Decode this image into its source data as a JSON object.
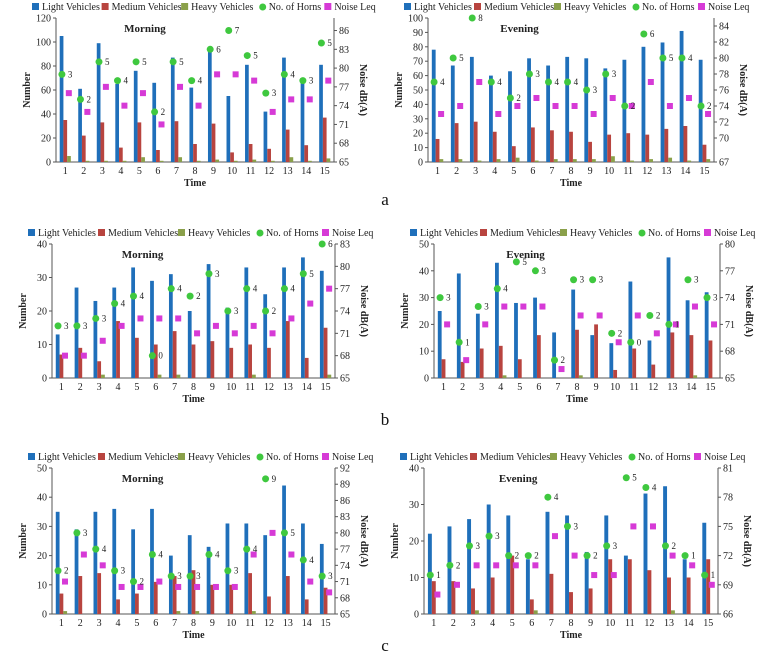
{
  "legend": {
    "light": "Light Vehicles",
    "medium": "Medium Vehicles",
    "heavy": "Heavy Vehicles",
    "horns": "No. of Horns",
    "leq": "Noise Leq"
  },
  "colors": {
    "light": "#1f6fba",
    "medium": "#b8443f",
    "heavy": "#8aa04a",
    "horns": "#3fc83f",
    "leq": "#d63ad6"
  },
  "axis_titles": {
    "x": "Time",
    "y_left": "Number",
    "y_right": "Noise dB(A)"
  },
  "panel_labels": [
    "a",
    "b",
    "c"
  ],
  "chart_data": [
    {
      "id": "a-morning",
      "type": "bar",
      "title": "Morning",
      "categories": [
        "1",
        "2",
        "3",
        "4",
        "5",
        "6",
        "7",
        "8",
        "9",
        "10",
        "11",
        "12",
        "13",
        "14",
        "15"
      ],
      "ylim": [
        0,
        120
      ],
      "yticks": [
        0,
        20,
        40,
        60,
        80,
        100,
        120
      ],
      "y2lim": [
        65,
        88
      ],
      "y2ticks": [
        65,
        68,
        71,
        74,
        77,
        80,
        83,
        86
      ],
      "series": [
        {
          "name": "Light Vehicles",
          "values": [
            105,
            61,
            99,
            65,
            76,
            66,
            87,
            62,
            96,
            55,
            81,
            42,
            87,
            69,
            81
          ]
        },
        {
          "name": "Medium Vehicles",
          "values": [
            35,
            22,
            33,
            12,
            33,
            10,
            34,
            15,
            32,
            8,
            15,
            11,
            27,
            14,
            37
          ]
        },
        {
          "name": "Heavy Vehicles",
          "values": [
            5,
            1,
            1,
            1,
            4,
            1,
            4,
            1,
            2,
            1,
            2,
            1,
            4,
            1,
            3
          ]
        },
        {
          "name": "No. of Horns",
          "values": [
            3,
            2,
            5,
            4,
            5,
            2,
            5,
            4,
            6,
            7,
            5,
            3,
            4,
            3,
            5
          ]
        },
        {
          "name": "Noise Leq",
          "values": [
            76,
            73,
            77,
            74,
            76,
            71,
            77,
            74,
            79,
            79,
            78,
            73,
            75,
            75,
            78
          ]
        }
      ],
      "horn_positions": [
        79,
        75,
        81,
        78,
        81,
        73,
        81,
        78,
        83,
        86,
        82,
        76,
        79,
        78,
        84
      ],
      "xlabel": "Time",
      "ylabel": "Number",
      "y2label": "Noise dB(A)"
    },
    {
      "id": "a-evening",
      "type": "bar",
      "title": "Evening",
      "categories": [
        "1",
        "2",
        "3",
        "4",
        "5",
        "6",
        "7",
        "8",
        "9",
        "10",
        "11",
        "12",
        "13",
        "14",
        "15"
      ],
      "ylim": [
        0,
        100
      ],
      "yticks": [
        0,
        10,
        20,
        30,
        40,
        50,
        60,
        70,
        80,
        90,
        100
      ],
      "y2lim": [
        67,
        85
      ],
      "y2ticks": [
        67,
        70,
        72,
        74,
        76,
        78,
        80,
        82,
        84
      ],
      "series": [
        {
          "name": "Light Vehicles",
          "values": [
            78,
            67,
            73,
            60,
            63,
            72,
            67,
            73,
            72,
            65,
            71,
            80,
            83,
            91,
            71
          ]
        },
        {
          "name": "Medium Vehicles",
          "values": [
            16,
            27,
            28,
            21,
            11,
            24,
            22,
            21,
            14,
            19,
            20,
            19,
            23,
            25,
            12
          ]
        },
        {
          "name": "Heavy Vehicles",
          "values": [
            2,
            2,
            1,
            2,
            3,
            1,
            2,
            2,
            2,
            4,
            1,
            2,
            3,
            1,
            2
          ]
        },
        {
          "name": "No. of Horns",
          "values": [
            4,
            5,
            8,
            4,
            2,
            3,
            4,
            4,
            3,
            3,
            2,
            6,
            5,
            4,
            2
          ]
        },
        {
          "name": "Noise Leq",
          "values": [
            73,
            74,
            77,
            73,
            74,
            75,
            74,
            74,
            73,
            75,
            74,
            77,
            74,
            75,
            73
          ]
        }
      ],
      "horn_positions": [
        77,
        80,
        85,
        77,
        75,
        78,
        77,
        77,
        76,
        78,
        74,
        83,
        80,
        80,
        74
      ],
      "xlabel": "Time",
      "ylabel": "Number",
      "y2label": "Noise dB(A)"
    },
    {
      "id": "b-morning",
      "type": "bar",
      "title": "Morning",
      "categories": [
        "1",
        "2",
        "3",
        "4",
        "5",
        "6",
        "7",
        "8",
        "9",
        "10",
        "11",
        "12",
        "13",
        "14",
        "15"
      ],
      "ylim": [
        0,
        40
      ],
      "yticks": [
        0,
        10,
        20,
        30,
        40
      ],
      "y2lim": [
        65,
        83
      ],
      "y2ticks": [
        65,
        68,
        71,
        74,
        77,
        80,
        83
      ],
      "series": [
        {
          "name": "Light Vehicles",
          "values": [
            13,
            27,
            23,
            27,
            33,
            29,
            31,
            20,
            34,
            21,
            33,
            25,
            33,
            36,
            32
          ]
        },
        {
          "name": "Medium Vehicles",
          "values": [
            7,
            9,
            5,
            17,
            12,
            10,
            14,
            10,
            11,
            9,
            10,
            9,
            17,
            6,
            15
          ]
        },
        {
          "name": "Heavy Vehicles",
          "values": [
            0,
            0,
            1,
            0,
            0,
            1,
            1,
            0,
            0,
            0,
            1,
            0,
            0,
            0,
            1
          ]
        },
        {
          "name": "No. of Horns",
          "values": [
            3,
            3,
            3,
            4,
            4,
            0,
            4,
            2,
            3,
            3,
            4,
            2,
            4,
            5,
            6
          ]
        },
        {
          "name": "Noise Leq",
          "values": [
            68,
            68,
            70,
            72,
            73,
            73,
            73,
            71,
            72,
            71,
            72,
            71,
            73,
            75,
            77
          ]
        }
      ],
      "horn_positions": [
        72,
        72,
        73,
        75,
        76,
        68,
        77,
        76,
        79,
        74,
        77,
        74,
        77,
        79,
        83
      ],
      "xlabel": "Time",
      "ylabel": "Number",
      "y2label": "Noise dB(A)"
    },
    {
      "id": "b-evening",
      "type": "bar",
      "title": "Evening",
      "categories": [
        "1",
        "2",
        "3",
        "4",
        "5",
        "6",
        "7",
        "8",
        "9",
        "10",
        "11",
        "12",
        "13",
        "14",
        "15"
      ],
      "ylim": [
        0,
        50
      ],
      "yticks": [
        0,
        10,
        20,
        30,
        40,
        50
      ],
      "y2lim": [
        65,
        80
      ],
      "y2ticks": [
        65,
        68,
        71,
        74,
        77,
        80
      ],
      "series": [
        {
          "name": "Light Vehicles",
          "values": [
            25,
            39,
            24,
            43,
            28,
            30,
            17,
            33,
            16,
            13,
            36,
            14,
            45,
            29,
            32
          ]
        },
        {
          "name": "Medium Vehicles",
          "values": [
            7,
            6,
            11,
            12,
            7,
            16,
            0,
            18,
            20,
            3,
            11,
            5,
            17,
            16,
            14
          ]
        },
        {
          "name": "Heavy Vehicles",
          "values": [
            0,
            0,
            0,
            1,
            0,
            0,
            0,
            1,
            0,
            0,
            0,
            0,
            0,
            1,
            0
          ]
        },
        {
          "name": "No. of Horns",
          "values": [
            3,
            1,
            3,
            4,
            5,
            3,
            2,
            3,
            3,
            2,
            0,
            2,
            1,
            3,
            3
          ]
        },
        {
          "name": "Noise Leq",
          "values": [
            71,
            67,
            71,
            73,
            73,
            73,
            66,
            72,
            72,
            69,
            72,
            70,
            71,
            73,
            71
          ]
        }
      ],
      "horn_positions": [
        74,
        69,
        73,
        75,
        78,
        77,
        67,
        76,
        76,
        70,
        69,
        72,
        71,
        76,
        74
      ],
      "xlabel": "Time",
      "ylabel": "Number",
      "y2label": "Noise dB(A)"
    },
    {
      "id": "c-morning",
      "type": "bar",
      "title": "Morning",
      "categories": [
        "1",
        "2",
        "3",
        "4",
        "5",
        "6",
        "7",
        "8",
        "9",
        "10",
        "11",
        "12",
        "13",
        "14",
        "15"
      ],
      "ylim": [
        0,
        50
      ],
      "yticks": [
        0,
        10,
        20,
        30,
        40,
        50
      ],
      "y2lim": [
        65,
        92
      ],
      "y2ticks": [
        65,
        68,
        71,
        74,
        77,
        80,
        83,
        86,
        89,
        92
      ],
      "series": [
        {
          "name": "Light Vehicles",
          "values": [
            35,
            29,
            35,
            36,
            29,
            36,
            20,
            27,
            23,
            31,
            31,
            27,
            44,
            31,
            24
          ]
        },
        {
          "name": "Medium Vehicles",
          "values": [
            7,
            13,
            14,
            5,
            7,
            11,
            13,
            15,
            10,
            10,
            14,
            6,
            13,
            5,
            9
          ]
        },
        {
          "name": "Heavy Vehicles",
          "values": [
            1,
            0,
            0,
            0,
            0,
            0,
            1,
            1,
            0,
            0,
            1,
            0,
            0,
            0,
            0
          ]
        },
        {
          "name": "No. of Horns",
          "values": [
            2,
            3,
            4,
            3,
            2,
            4,
            3,
            3,
            4,
            3,
            4,
            9,
            5,
            4,
            3
          ]
        },
        {
          "name": "Noise Leq",
          "values": [
            71,
            76,
            74,
            70,
            70,
            71,
            70,
            70,
            70,
            70,
            76,
            80,
            76,
            71,
            69
          ]
        }
      ],
      "horn_positions": [
        73,
        80,
        77,
        73,
        71,
        76,
        72,
        72,
        76,
        73,
        77,
        90,
        80,
        75,
        72
      ],
      "xlabel": "Time",
      "ylabel": "Number",
      "y2label": "Noise dB(A)"
    },
    {
      "id": "c-evening",
      "type": "bar",
      "title": "Evening",
      "categories": [
        "1",
        "2",
        "3",
        "4",
        "5",
        "6",
        "7",
        "8",
        "9",
        "10",
        "11",
        "12",
        "13",
        "14",
        "15"
      ],
      "ylim": [
        0,
        40
      ],
      "yticks": [
        0,
        10,
        20,
        30,
        40
      ],
      "y2lim": [
        66,
        81
      ],
      "y2ticks": [
        66,
        69,
        72,
        75,
        78,
        81
      ],
      "series": [
        {
          "name": "Light Vehicles",
          "values": [
            22,
            24,
            26,
            30,
            27,
            15,
            28,
            27,
            17,
            27,
            16,
            33,
            35,
            15,
            25
          ]
        },
        {
          "name": "Medium Vehicles",
          "values": [
            9,
            9,
            7,
            10,
            16,
            4,
            11,
            6,
            7,
            15,
            15,
            12,
            10,
            10,
            15
          ]
        },
        {
          "name": "Heavy Vehicles",
          "values": [
            0,
            0,
            1,
            0,
            0,
            1,
            0,
            0,
            0,
            0,
            0,
            0,
            1,
            0,
            0
          ]
        },
        {
          "name": "No. of Horns",
          "values": [
            1,
            2,
            3,
            3,
            2,
            2,
            4,
            3,
            2,
            3,
            5,
            4,
            2,
            1,
            1
          ]
        },
        {
          "name": "Noise Leq",
          "values": [
            68,
            69,
            71,
            71,
            71,
            71,
            74,
            72,
            70,
            70,
            75,
            75,
            72,
            71,
            69
          ]
        }
      ],
      "horn_positions": [
        70,
        71,
        73,
        74,
        72,
        72,
        78,
        75,
        72,
        73,
        80,
        79,
        73,
        72,
        70
      ],
      "xlabel": "Time",
      "ylabel": "Number",
      "y2label": "Noise dB(A)"
    }
  ]
}
